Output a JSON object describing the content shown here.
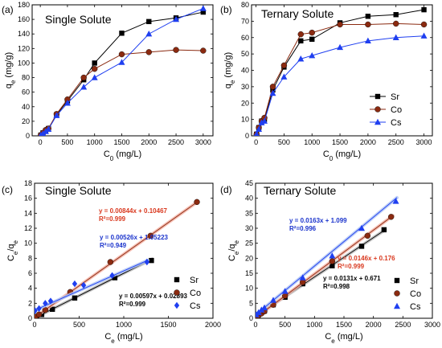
{
  "colors": {
    "Sr": "#000000",
    "Co": "#8b2a10",
    "Cs": "#1f3ff0",
    "eq_red": "#d9381e",
    "eq_blue": "#1a33cc",
    "eq_black": "#000000",
    "fit_red": "#f5b5a8",
    "fit_blue": "#b4c8f6",
    "fit_black": "#bdbdbd"
  },
  "chart_data": [
    {
      "type": "line",
      "panel_label": "(a)",
      "title": "Single Solute",
      "xlabel": "C0 (mg/L)",
      "ylabel": "qe (mg/g)",
      "xlim": [
        -150,
        3180
      ],
      "ylim": [
        0,
        180
      ],
      "xticks": [
        0,
        500,
        1000,
        1500,
        2000,
        2500,
        3000
      ],
      "yticks": [
        0,
        20,
        40,
        60,
        80,
        100,
        120,
        140,
        160,
        180
      ],
      "legend": null,
      "series": [
        {
          "name": "Sr",
          "marker": "square",
          "color_key": "Sr",
          "x": [
            10,
            50,
            100,
            150,
            300,
            500,
            800,
            1000,
            1500,
            2000,
            2500,
            3000
          ],
          "y": [
            1,
            4,
            7,
            10,
            29,
            48,
            77,
            100,
            141,
            157,
            162,
            170
          ]
        },
        {
          "name": "Co",
          "marker": "circle",
          "color_key": "Co",
          "x": [
            10,
            50,
            100,
            150,
            300,
            500,
            800,
            1000,
            1500,
            2000,
            2500,
            3000
          ],
          "y": [
            1,
            4,
            8,
            10,
            30,
            50,
            80,
            92,
            112,
            115,
            118,
            117
          ]
        },
        {
          "name": "Cs",
          "marker": "triangle",
          "color_key": "Cs",
          "x": [
            10,
            50,
            100,
            150,
            300,
            500,
            800,
            1000,
            1500,
            2000,
            2500,
            3000
          ],
          "y": [
            1,
            3,
            6,
            9,
            28,
            45,
            67,
            80,
            101,
            140,
            160,
            175
          ]
        }
      ]
    },
    {
      "type": "line",
      "panel_label": "(b)",
      "title": "Ternary Solute",
      "xlabel": "C0 (mg/L)",
      "ylabel": "qe (mg/g)",
      "xlim": [
        -80,
        3150
      ],
      "ylim": [
        0,
        80
      ],
      "xticks": [
        0,
        500,
        1000,
        1500,
        2000,
        2500,
        3000
      ],
      "yticks": [
        0,
        10,
        20,
        30,
        40,
        50,
        60,
        70,
        80
      ],
      "legend": "center-right",
      "series": [
        {
          "name": "Sr",
          "marker": "square",
          "color_key": "Sr",
          "x": [
            10,
            50,
            100,
            150,
            300,
            500,
            800,
            1000,
            1500,
            2000,
            2500,
            3000
          ],
          "y": [
            1,
            5,
            9,
            10,
            28,
            42,
            58,
            59,
            69,
            73,
            74,
            77
          ]
        },
        {
          "name": "Co",
          "marker": "circle",
          "color_key": "Co",
          "x": [
            10,
            50,
            100,
            150,
            300,
            500,
            800,
            1000,
            1500,
            2000,
            2500,
            3000
          ],
          "y": [
            1,
            5,
            9,
            11,
            30,
            43,
            62,
            63,
            68,
            68,
            68.5,
            68
          ]
        },
        {
          "name": "Cs",
          "marker": "triangle",
          "color_key": "Cs",
          "x": [
            10,
            50,
            100,
            150,
            300,
            500,
            800,
            1000,
            1500,
            2000,
            2500,
            3000
          ],
          "y": [
            1,
            4,
            8,
            9,
            26,
            36,
            47,
            49,
            54,
            58,
            60,
            61
          ]
        }
      ]
    },
    {
      "type": "scatter",
      "panel_label": "(c)",
      "title": "Single Solute",
      "xlabel": "Ce (mg/L)",
      "ylabel": "Ce/qe",
      "xlim": [
        0,
        2000
      ],
      "ylim": [
        0,
        18
      ],
      "xticks": [
        0,
        500,
        1000,
        1500,
        2000
      ],
      "yticks": [
        0,
        2,
        4,
        6,
        8,
        10,
        12,
        14,
        16,
        18
      ],
      "legend": "bottom-right",
      "series": [
        {
          "name": "Sr",
          "marker": "square",
          "color_key": "Sr",
          "x": [
            20,
            80,
            200,
            450,
            900,
            1310
          ],
          "y": [
            0.15,
            0.5,
            1.2,
            2.7,
            5.4,
            7.7
          ],
          "fit": {
            "slope": 0.00597,
            "intercept": 0.02893,
            "equation": "y = 0.00597x + 0.02893",
            "r2": "R²=0.999",
            "x_range": [
              0,
              1320
            ],
            "fit_color_key": "fit_black",
            "eq_color_key": "eq_black"
          }
        },
        {
          "name": "Co",
          "marker": "circle",
          "color_key": "Co",
          "x": [
            10,
            50,
            120,
            400,
            850,
            1300,
            1820
          ],
          "y": [
            0.2,
            0.5,
            1.1,
            3.5,
            7.5,
            11.0,
            15.5
          ],
          "fit": {
            "slope": 0.00844,
            "intercept": 0.10467,
            "equation": "y = 0.00844x + 0.10467",
            "r2": "R²=0.999",
            "x_range": [
              0,
              1830
            ],
            "fit_color_key": "fit_red",
            "eq_color_key": "eq_red"
          }
        },
        {
          "name": "Cs",
          "marker": "diamond",
          "color_key": "Cs",
          "x": [
            5,
            50,
            120,
            180,
            450,
            550,
            870,
            1260
          ],
          "y": [
            1.0,
            1.3,
            2.0,
            2.3,
            4.6,
            4.4,
            5.7,
            7.5
          ],
          "fit": {
            "slope": 0.00526,
            "intercept": 1.05223,
            "equation": "y = 0.00526x + 1.05223",
            "r2": "R²=0.949",
            "x_range": [
              0,
              1270
            ],
            "fit_color_key": "fit_blue",
            "eq_color_key": "eq_blue"
          }
        }
      ]
    },
    {
      "type": "scatter",
      "panel_label": "(d)",
      "title": "Ternary Solute",
      "xlabel": "Ce (mg/L)",
      "ylabel": "Ce/qe",
      "xlim": [
        0,
        3000
      ],
      "ylim": [
        0,
        45
      ],
      "xticks": [
        0,
        500,
        1000,
        1500,
        2000,
        2500,
        3000
      ],
      "yticks": [
        0,
        5,
        10,
        15,
        20,
        25,
        30,
        35,
        40,
        45
      ],
      "legend": "bottom-right",
      "series": [
        {
          "name": "Sr",
          "marker": "square",
          "color_key": "Sr",
          "x": [
            10,
            50,
            100,
            150,
            300,
            500,
            800,
            1300,
            1800,
            2180
          ],
          "y": [
            0.8,
            1.3,
            1.9,
            2.4,
            4.5,
            7.0,
            11.5,
            17.5,
            24.0,
            29.5
          ],
          "fit": {
            "slope": 0.0131,
            "intercept": 0.671,
            "equation": "y = 0.0131x + 0.671",
            "r2": "R²=0.998",
            "x_range": [
              0,
              2200
            ],
            "fit_color_key": "fit_black",
            "eq_color_key": "eq_black"
          }
        },
        {
          "name": "Co",
          "marker": "circle",
          "color_key": "Co",
          "x": [
            10,
            50,
            100,
            150,
            300,
            500,
            800,
            1300,
            1900,
            2300
          ],
          "y": [
            0.3,
            0.9,
            1.6,
            2.3,
            4.5,
            7.5,
            12.0,
            19.0,
            27.5,
            33.8
          ],
          "fit": {
            "slope": 0.0146,
            "intercept": 0.176,
            "equation": "y = 0.0146x + 0.176",
            "r2": "R²=0.999",
            "x_range": [
              0,
              2330
            ],
            "fit_color_key": "fit_red",
            "eq_color_key": "eq_red"
          }
        },
        {
          "name": "Cs",
          "marker": "triangle",
          "color_key": "Cs",
          "x": [
            10,
            50,
            100,
            150,
            300,
            500,
            800,
            1300,
            1800,
            2380
          ],
          "y": [
            1.2,
            1.9,
            2.8,
            3.5,
            6.0,
            9.0,
            13.5,
            20.8,
            30.0,
            39.0
          ],
          "fit": {
            "slope": 0.0163,
            "intercept": 1.099,
            "equation": "y = 0.0163x + 1.099",
            "r2": "R²=0.996",
            "x_range": [
              0,
              2400
            ],
            "fit_color_key": "fit_blue",
            "eq_color_key": "eq_blue"
          }
        }
      ]
    }
  ]
}
